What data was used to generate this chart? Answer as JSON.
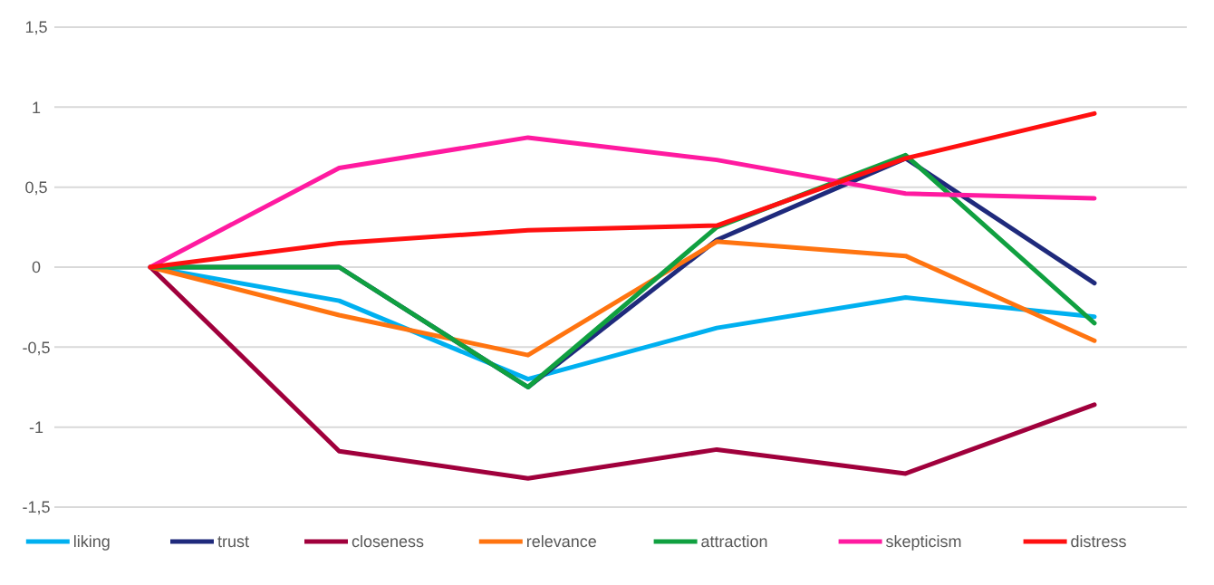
{
  "chart_data": {
    "type": "line",
    "categories": [
      null,
      null,
      null,
      null,
      null,
      null
    ],
    "ylim": [
      -1.5,
      1.5
    ],
    "yticks": [
      {
        "value": -1.5,
        "label": "-1,5"
      },
      -1,
      {
        "value": -0.5,
        "label": "-0,5"
      },
      0,
      {
        "value": 0.5,
        "label": "0,5"
      },
      1,
      {
        "value": 1.5,
        "label": "1,5"
      }
    ],
    "grid": "y",
    "legend": "bottom",
    "marker": "none",
    "line_style": "solid",
    "series": [
      {
        "name": "liking",
        "color": "#00b0f0",
        "values": [
          0,
          -0.21,
          -0.7,
          -0.38,
          -0.19,
          -0.31
        ]
      },
      {
        "name": "trust",
        "color": "#1f2a7c",
        "values": [
          0,
          0,
          -0.75,
          0.17,
          0.68,
          -0.1
        ]
      },
      {
        "name": "closeness",
        "color": "#a0003c",
        "values": [
          0,
          -1.15,
          -1.32,
          -1.14,
          -1.29,
          -0.86
        ]
      },
      {
        "name": "relevance",
        "color": "#ff7410",
        "values": [
          0,
          -0.3,
          -0.55,
          0.16,
          0.07,
          -0.46
        ]
      },
      {
        "name": "attraction",
        "color": "#10a040",
        "values": [
          0,
          0,
          -0.75,
          0.25,
          0.7,
          -0.35
        ]
      },
      {
        "name": "skepticism",
        "color": "#ff1aa0",
        "values": [
          0,
          0.62,
          0.81,
          0.67,
          0.46,
          0.43
        ]
      },
      {
        "name": "distress",
        "color": "#ff1010",
        "values": [
          0,
          0.15,
          0.23,
          0.26,
          0.68,
          0.96
        ]
      }
    ]
  }
}
